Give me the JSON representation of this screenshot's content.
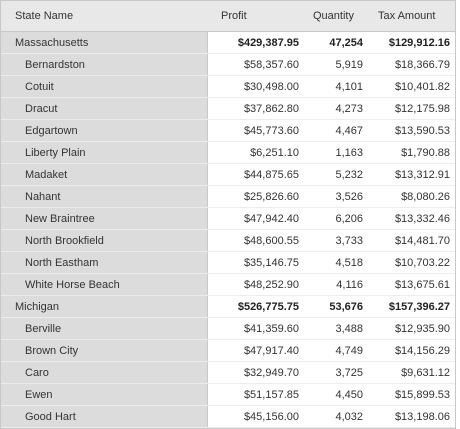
{
  "table": {
    "header": [
      "State Name",
      "Profit",
      "Quantity",
      "Tax Amount"
    ],
    "groups": [
      {
        "cells": [
          "Massachusetts",
          "$429,387.95",
          "47,254",
          "$129,912.16"
        ],
        "rows": [
          [
            "Bernardston",
            "$58,357.60",
            "5,919",
            "$18,366.79"
          ],
          [
            "Cotuit",
            "$30,498.00",
            "4,101",
            "$10,401.82"
          ],
          [
            "Dracut",
            "$37,862.80",
            "4,273",
            "$12,175.98"
          ],
          [
            "Edgartown",
            "$45,773.60",
            "4,467",
            "$13,590.53"
          ],
          [
            "Liberty Plain",
            "$6,251.10",
            "1,163",
            "$1,790.88"
          ],
          [
            "Madaket",
            "$44,875.65",
            "5,232",
            "$13,312.91"
          ],
          [
            "Nahant",
            "$25,826.60",
            "3,526",
            "$8,080.26"
          ],
          [
            "New Braintree",
            "$47,942.40",
            "6,206",
            "$13,332.46"
          ],
          [
            "North Brookfield",
            "$48,600.55",
            "3,733",
            "$14,481.70"
          ],
          [
            "North Eastham",
            "$35,146.75",
            "4,518",
            "$10,703.22"
          ],
          [
            "White Horse Beach",
            "$48,252.90",
            "4,116",
            "$13,675.61"
          ]
        ]
      },
      {
        "cells": [
          "Michigan",
          "$526,775.75",
          "53,676",
          "$157,396.27"
        ],
        "rows": [
          [
            "Berville",
            "$41,359.60",
            "3,488",
            "$12,935.90"
          ],
          [
            "Brown City",
            "$47,917.40",
            "4,749",
            "$14,156.29"
          ],
          [
            "Caro",
            "$32,949.70",
            "3,725",
            "$9,631.12"
          ],
          [
            "Ewen",
            "$51,157.85",
            "4,450",
            "$15,899.53"
          ],
          [
            "Good Hart",
            "$45,156.00",
            "4,032",
            "$13,198.06"
          ]
        ]
      }
    ]
  }
}
